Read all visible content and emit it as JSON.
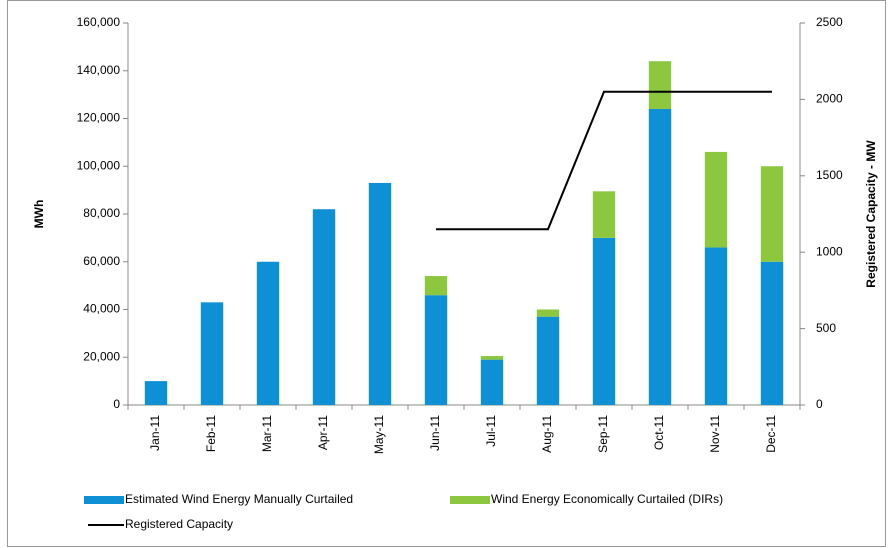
{
  "chart_data": {
    "type": "bar",
    "stacked": true,
    "categories": [
      "Jan-11",
      "Feb-11",
      "Mar-11",
      "Apr-11",
      "May-11",
      "Jun-11",
      "Jul-11",
      "Aug-11",
      "Sep-11",
      "Oct-11",
      "Nov-11",
      "Dec-11"
    ],
    "series": [
      {
        "name": "Estimated Wind Energy Manually Curtailed",
        "color": "#0f8fd4",
        "type": "bar",
        "values": [
          10000,
          43000,
          60000,
          82000,
          93000,
          46000,
          19000,
          37000,
          70000,
          124000,
          66000,
          60000
        ]
      },
      {
        "name": "Wind Energy Economically Curtailed (DIRs)",
        "color": "#8dc63f",
        "type": "bar",
        "values": [
          0,
          0,
          0,
          0,
          0,
          8000,
          1500,
          3000,
          19500,
          20000,
          40000,
          40000
        ]
      },
      {
        "name": "Registered Capacity",
        "color": "#000000",
        "type": "line",
        "axis": "y2",
        "values": [
          null,
          null,
          null,
          null,
          null,
          1150,
          1150,
          1150,
          2050,
          2050,
          2050,
          2050
        ]
      }
    ],
    "ylabel": "MWh",
    "y2label": "Registered  Capacity - MW",
    "ylim": [
      0,
      160000
    ],
    "yticks": [
      0,
      {
        "value": 20000,
        "label": "20,000"
      },
      {
        "value": 40000,
        "label": "40,000"
      },
      {
        "value": 60000,
        "label": "60,000"
      },
      {
        "value": 80000,
        "label": "80,000"
      },
      {
        "value": 100000,
        "label": "100,000"
      },
      {
        "value": 120000,
        "label": "120,000"
      },
      {
        "value": 140000,
        "label": "140,000"
      },
      {
        "value": 160000,
        "label": "160,000"
      }
    ],
    "y2lim": [
      0,
      2500
    ],
    "y2ticks": [
      0,
      500,
      1000,
      1500,
      2000,
      2500
    ],
    "grid": false,
    "legend": "bottom"
  }
}
